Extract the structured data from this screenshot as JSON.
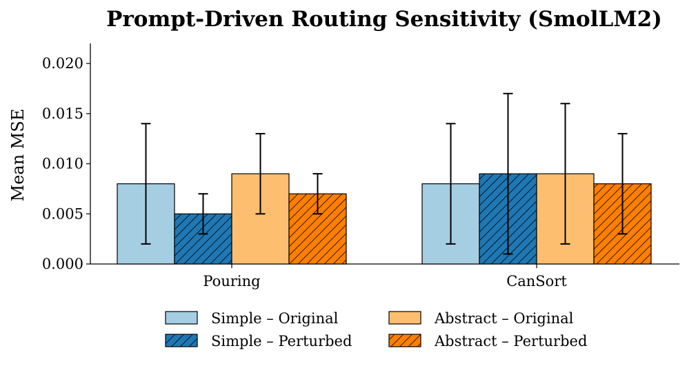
{
  "chart_data": {
    "type": "bar",
    "title": "Prompt-Driven Routing Sensitivity (SmolLM2)",
    "xlabel": "",
    "ylabel": "Mean MSE",
    "ylim": [
      0,
      0.022
    ],
    "yticks": [
      "0.000",
      "0.005",
      "0.010",
      "0.015",
      "0.020"
    ],
    "categories": [
      "Pouring",
      "CanSort"
    ],
    "series": [
      {
        "name": "Simple – Original",
        "values": [
          0.008,
          0.008
        ],
        "err_low": [
          0.002,
          0.002
        ],
        "err_high": [
          0.014,
          0.014
        ],
        "color": "#a6cee3",
        "hatch": false
      },
      {
        "name": "Simple – Perturbed",
        "values": [
          0.005,
          0.009
        ],
        "err_low": [
          0.003,
          0.001
        ],
        "err_high": [
          0.007,
          0.017
        ],
        "color": "#1f78b4",
        "hatch": true
      },
      {
        "name": "Abstract – Original",
        "values": [
          0.009,
          0.009
        ],
        "err_low": [
          0.005,
          0.002
        ],
        "err_high": [
          0.013,
          0.016
        ],
        "color": "#fdbf6f",
        "hatch": false
      },
      {
        "name": "Abstract – Perturbed",
        "values": [
          0.007,
          0.008
        ],
        "err_low": [
          0.005,
          0.003
        ],
        "err_high": [
          0.009,
          0.013
        ],
        "color": "#ff7f00",
        "hatch": true
      }
    ],
    "grid": false,
    "legend_position": "bottom-center"
  }
}
